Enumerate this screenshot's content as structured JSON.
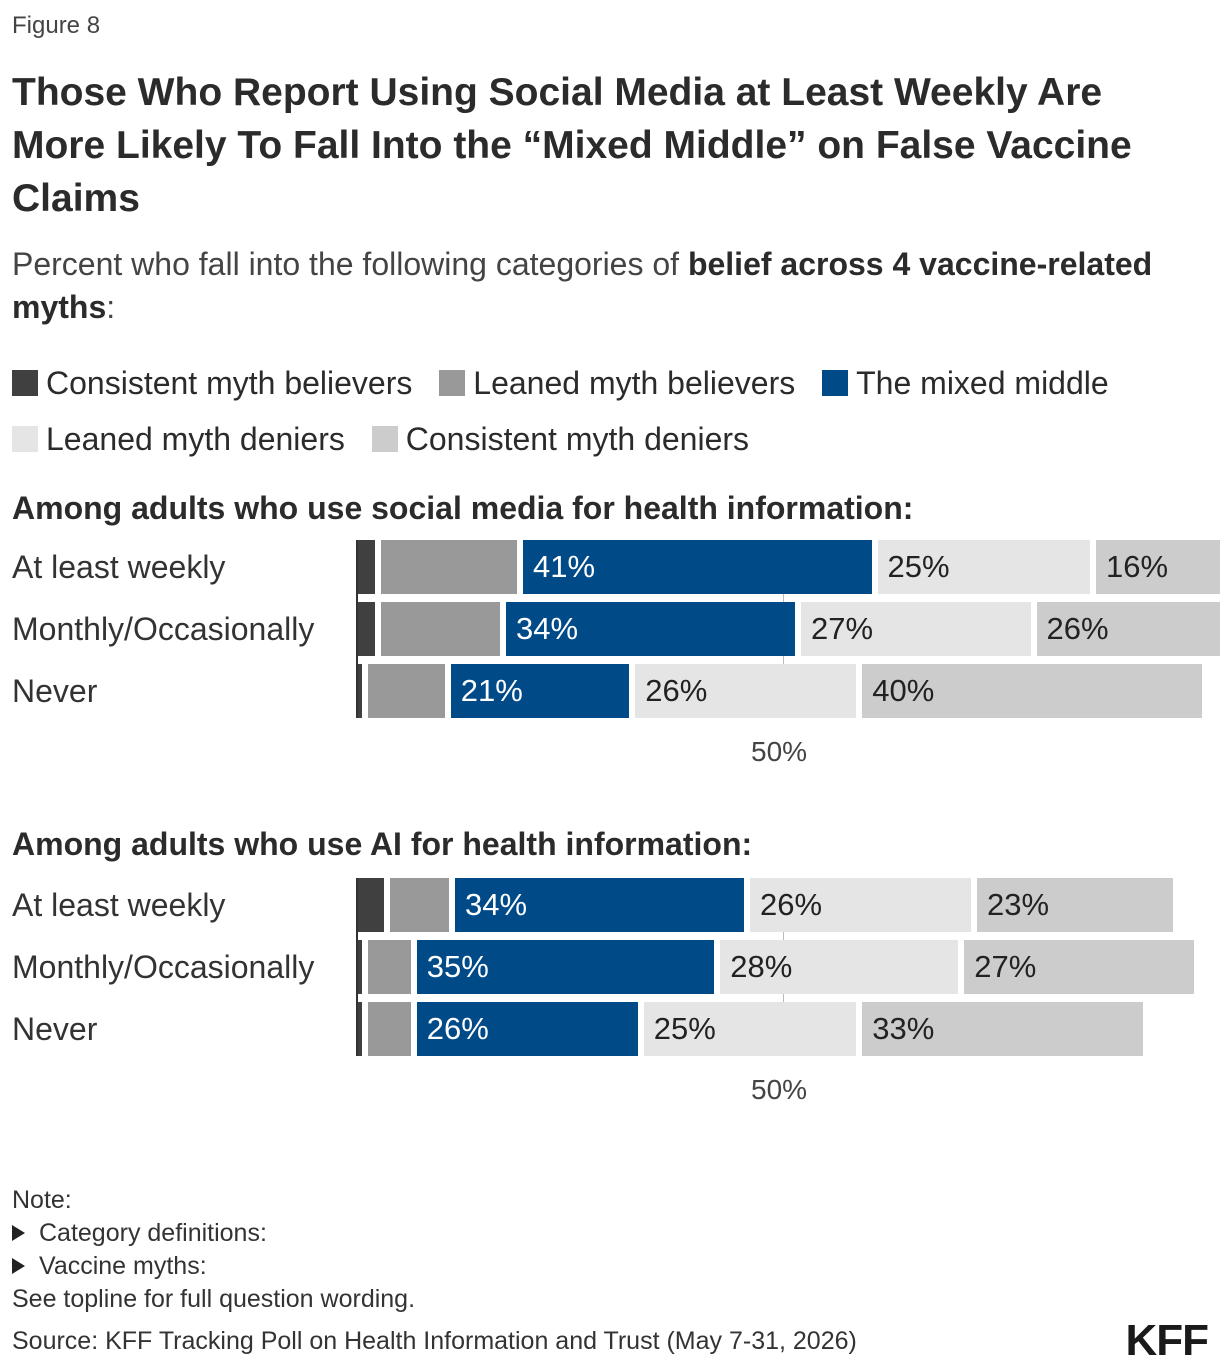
{
  "figure_label": "Figure 8",
  "title": "Those Who Report Using Social Media at Least Weekly Are More Likely To Fall Into the “Mixed Middle” on False Vaccine Claims",
  "subtitle_plain": "Percent who fall into the following categories of ",
  "subtitle_bold": "belief across 4 vaccine-related myths",
  "subtitle_end": ":",
  "legend": [
    {
      "label": "Consistent myth believers",
      "color": "#404040"
    },
    {
      "label": "Leaned myth believers",
      "color": "#999999"
    },
    {
      "label": "The mixed middle",
      "color": "#004a87"
    },
    {
      "label": "Leaned myth deniers",
      "color": "#e5e5e5"
    },
    {
      "label": "Consistent myth deniers",
      "color": "#cccccc"
    }
  ],
  "chart_data": [
    {
      "type": "bar",
      "stacked": true,
      "orientation": "horizontal",
      "title": "Among adults who use social media for health information:",
      "categories": [
        "At least weekly",
        "Monthly/Occasionally",
        "Never"
      ],
      "series": [
        {
          "name": "Consistent myth believers",
          "values": [
            2,
            2,
            0.5
          ]
        },
        {
          "name": "Leaned myth believers",
          "values": [
            16,
            14,
            9
          ]
        },
        {
          "name": "The mixed middle",
          "values": [
            41,
            34,
            21
          ]
        },
        {
          "name": "Leaned myth deniers",
          "values": [
            25,
            27,
            26
          ]
        },
        {
          "name": "Consistent myth deniers",
          "values": [
            16,
            26,
            40
          ]
        }
      ],
      "labeled_series": [
        "The mixed middle",
        "Leaned myth deniers",
        "Consistent myth deniers"
      ],
      "reference_line": {
        "value": 50,
        "label": "50%"
      }
    },
    {
      "type": "bar",
      "stacked": true,
      "orientation": "horizontal",
      "title": "Among adults who use AI for health information:",
      "categories": [
        "At least weekly",
        "Monthly/Occasionally",
        "Never"
      ],
      "series": [
        {
          "name": "Consistent myth believers",
          "values": [
            3,
            0.5,
            0.5
          ]
        },
        {
          "name": "Leaned myth believers",
          "values": [
            7,
            5,
            5
          ]
        },
        {
          "name": "The mixed middle",
          "values": [
            34,
            35,
            26
          ]
        },
        {
          "name": "Leaned myth deniers",
          "values": [
            26,
            28,
            25
          ]
        },
        {
          "name": "Consistent myth deniers",
          "values": [
            23,
            27,
            33
          ]
        }
      ],
      "labeled_series": [
        "The mixed middle",
        "Leaned myth deniers",
        "Consistent myth deniers"
      ],
      "reference_line": {
        "value": 50,
        "label": "50%"
      }
    }
  ],
  "notes": {
    "heading": "Note:",
    "items": [
      "Category definitions:",
      "Vaccine myths:"
    ],
    "footer": "See topline for full question wording."
  },
  "source": "Source: KFF Tracking Poll on Health Information and Trust (May 7-31, 2026)",
  "logo": "KFF"
}
